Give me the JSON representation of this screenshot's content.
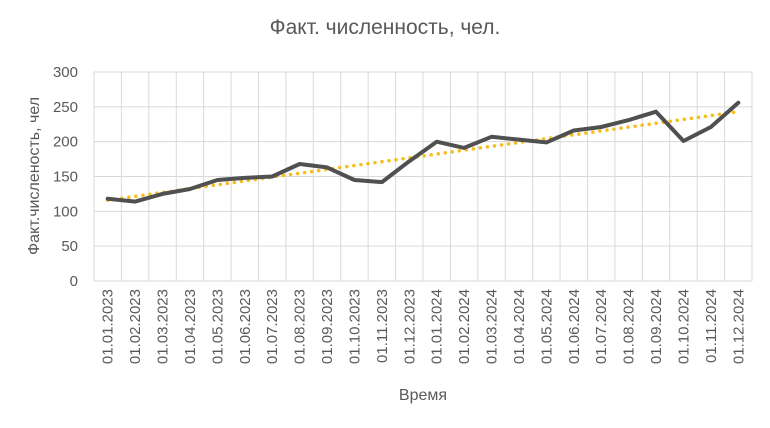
{
  "chart_data": {
    "type": "line",
    "title": "Факт. численность, чел.",
    "xlabel": "Время",
    "ylabel": "Факт.численость, чел",
    "ylim": [
      0,
      300
    ],
    "yticks": [
      0,
      50,
      100,
      150,
      200,
      250,
      300
    ],
    "grid": true,
    "legend": "none",
    "categories": [
      "01.01.2023",
      "01.02.2023",
      "01.03.2023",
      "01.04.2023",
      "01.05.2023",
      "01.06.2023",
      "01.07.2023",
      "01.08.2023",
      "01.09.2023",
      "01.10.2023",
      "01.11.2023",
      "01.12.2023",
      "01.01.2024",
      "01.02.2024",
      "01.03.2024",
      "01.04.2024",
      "01.05.2024",
      "01.06.2024",
      "01.07.2024",
      "01.08.2024",
      "01.09.2024",
      "01.10.2024",
      "01.11.2024",
      "01.12.2024"
    ],
    "series": [
      {
        "values": [
          118,
          114,
          125,
          132,
          145,
          148,
          150,
          168,
          163,
          145,
          142,
          172,
          200,
          191,
          207,
          203,
          199,
          216,
          221,
          231,
          243,
          201,
          221,
          256
        ],
        "color": "#505050",
        "style": "solid"
      }
    ],
    "trendline": {
      "type": "linear",
      "start": 116,
      "end": 243,
      "color": "#F5BE1E",
      "style": "dotted"
    }
  }
}
